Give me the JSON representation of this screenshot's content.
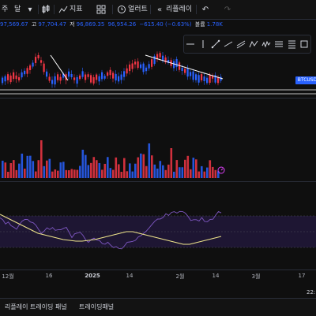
{
  "toolbar": {
    "interval_week": "주",
    "interval_month": "달",
    "indicators_label": "지표",
    "alert_label": "얼러트",
    "replay_label": "리플레이"
  },
  "ohlc": {
    "open": "97,569.67",
    "high_label": "고",
    "high": "97,704.47",
    "low_label": "저",
    "low": "96,869.35",
    "close": "96,954.26",
    "change": "−615.40 (−0.63%)",
    "volume_label": "볼륨",
    "volume": "1.78K"
  },
  "symbol_tag": "BTCUSD",
  "time_axis": {
    "ticks": [
      "12월",
      "16",
      "2025",
      "14",
      "2월",
      "14",
      "3월",
      "17"
    ],
    "clock": "22:"
  },
  "bottom_panel": {
    "tab_replay_panel": "리플레이 트레이딩 패널",
    "tab_trading_panel": "트레이딩패널"
  },
  "colors": {
    "up": "#2962ff",
    "down": "#f23645",
    "rsi_line": "#7e57c2",
    "rsi_ma": "#f0e68c",
    "trendline": "#ffffff"
  }
}
